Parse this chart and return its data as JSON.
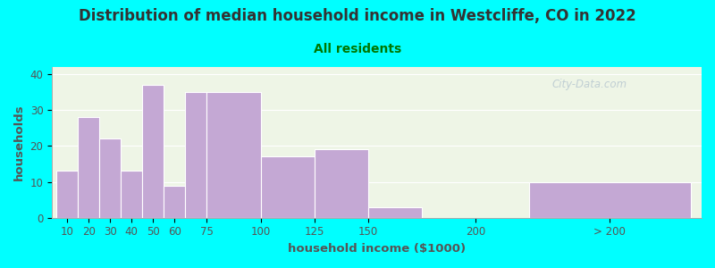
{
  "title": "Distribution of median household income in Westcliffe, CO in 2022",
  "subtitle": "All residents",
  "xlabel": "household income ($1000)",
  "ylabel": "households",
  "title_fontsize": 12,
  "subtitle_fontsize": 10,
  "label_fontsize": 9.5,
  "tick_fontsize": 8.5,
  "background_color": "#00FFFF",
  "plot_bg_color": "#eef5e6",
  "bar_color": "#c4a8d4",
  "values": [
    13,
    28,
    22,
    13,
    37,
    9,
    35,
    35,
    17,
    19,
    3,
    10
  ],
  "bar_lefts": [
    5,
    15,
    25,
    35,
    45,
    55,
    65,
    75,
    100,
    125,
    150,
    225
  ],
  "bar_widths": [
    10,
    10,
    10,
    10,
    10,
    10,
    10,
    25,
    25,
    25,
    25,
    75
  ],
  "xtick_positions": [
    10,
    20,
    30,
    40,
    50,
    60,
    75,
    100,
    125,
    150,
    200,
    262
  ],
  "xtick_labels": [
    "10",
    "20",
    "30",
    "40",
    "50",
    "60",
    "75",
    "100",
    "125",
    "150",
    "200",
    "> 200"
  ],
  "ylim": [
    0,
    42
  ],
  "xlim": [
    3,
    305
  ],
  "yticks": [
    0,
    10,
    20,
    30,
    40
  ],
  "watermark": "City-Data.com",
  "title_color": "#333333",
  "subtitle_color": "#007700",
  "axis_color": "#555555",
  "tick_color": "#555555"
}
